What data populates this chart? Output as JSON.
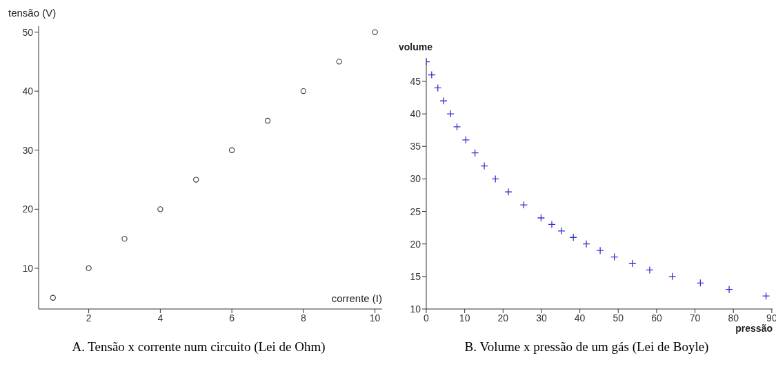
{
  "chart_data": [
    {
      "type": "scatter",
      "title": "A. Tensão x corrente num circuito (Lei de Ohm)",
      "xlabel": "corrente (I)",
      "ylabel": "tensão (V)",
      "x": [
        1,
        2,
        3,
        4,
        5,
        6,
        7,
        8,
        9,
        10
      ],
      "values": [
        5,
        10,
        15,
        20,
        25,
        30,
        35,
        40,
        45,
        50
      ],
      "color": "#333333",
      "marker": "circle",
      "xlim": [
        0.6,
        10.2
      ],
      "ylim": [
        3.1,
        51
      ],
      "xticks": [
        2,
        4,
        6,
        8,
        10
      ],
      "yticks": [
        10,
        20,
        30,
        40,
        50
      ]
    },
    {
      "type": "scatter",
      "title": "B. Volume x pressão de um gás (Lei de Boyle)",
      "xlabel": "pressão",
      "ylabel": "volume",
      "x": [
        0,
        1.4,
        3,
        4.5,
        6.3,
        8,
        10.3,
        12.7,
        15.1,
        18,
        21.4,
        25.4,
        29.9,
        32.7,
        35.2,
        38.3,
        41.7,
        45.3,
        49,
        53.7,
        58.2,
        64.1,
        71.4,
        78.9,
        88.5
      ],
      "values": [
        48,
        46,
        44,
        42,
        40,
        38,
        36,
        34,
        32,
        30,
        28,
        26,
        24,
        23,
        22,
        21,
        20,
        19,
        18,
        17,
        16,
        15,
        14,
        13,
        12
      ],
      "color": "#3333cc",
      "marker": "cross",
      "xlim": [
        0,
        90.2
      ],
      "ylim": [
        10,
        48.6
      ],
      "xticks": [
        0,
        10,
        20,
        30,
        40,
        50,
        60,
        70,
        80,
        90
      ],
      "yticks": [
        10,
        15,
        20,
        25,
        30,
        35,
        40,
        45
      ]
    }
  ]
}
